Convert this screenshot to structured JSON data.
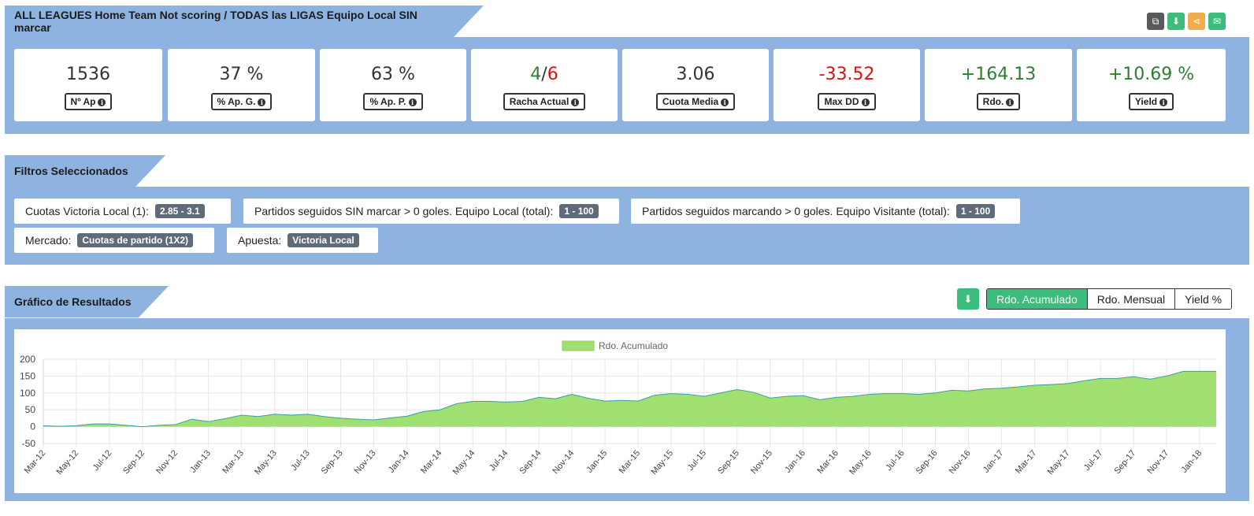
{
  "header": {
    "title": "ALL LEAGUES Home Team Not scoring / TODAS las LIGAS Equipo Local SIN marcar",
    "tools": [
      {
        "icon": "copy-icon",
        "color": "#5a5a5a"
      },
      {
        "icon": "download-icon",
        "color": "#3dbd7d"
      },
      {
        "icon": "share-icon",
        "color": "#f0ad4e"
      },
      {
        "icon": "email-icon",
        "color": "#3dbd7d"
      }
    ]
  },
  "stats": [
    {
      "value": "1536",
      "label": "Nº Ap"
    },
    {
      "value": "37 %",
      "label": "% Ap. G."
    },
    {
      "value": "63 %",
      "label": "% Ap. P."
    },
    {
      "value_win": "4",
      "value_sep": "/",
      "value_loss": "6",
      "label": "Racha Actual"
    },
    {
      "value": "3.06",
      "label": "Cuota Media"
    },
    {
      "value": "-33.52",
      "label": "Max DD"
    },
    {
      "value": "+164.13",
      "label": "Rdo."
    },
    {
      "value": "+10.69 %",
      "label": "Yield"
    }
  ],
  "filters": {
    "title": "Filtros Seleccionados",
    "items": [
      {
        "label": "Cuotas Victoria Local (1):",
        "badge": "2.85 - 3.1"
      },
      {
        "label": "Partidos seguidos SIN marcar > 0 goles. Equipo Local (total):",
        "badge": "1 - 100"
      },
      {
        "label": "Partidos seguidos marcando > 0 goles. Equipo Visitante (total):",
        "badge": "1 - 100"
      },
      {
        "label": "Mercado:",
        "badge": "Cuotas de partido (1X2)"
      },
      {
        "label": "Apuesta:",
        "badge": "Victoria Local"
      }
    ]
  },
  "results": {
    "title": "Gráfico de Resultados",
    "toggles": [
      "Rdo. Acumulado",
      "Rdo. Mensual",
      "Yield %"
    ],
    "active_toggle": "Rdo. Acumulado"
  },
  "chart_data": {
    "type": "area",
    "series": [
      {
        "name": "Rdo. Acumulado",
        "color": "#a0e070",
        "line_color": "#3aa0a0"
      }
    ],
    "x": [
      "Mar-12",
      "Apr-12",
      "May-12",
      "Jun-12",
      "Jul-12",
      "Aug-12",
      "Sep-12",
      "Oct-12",
      "Nov-12",
      "Dec-12",
      "Jan-13",
      "Feb-13",
      "Mar-13",
      "Apr-13",
      "May-13",
      "Jun-13",
      "Jul-13",
      "Aug-13",
      "Sep-13",
      "Oct-13",
      "Nov-13",
      "Dec-13",
      "Jan-14",
      "Feb-14",
      "Mar-14",
      "Apr-14",
      "May-14",
      "Jun-14",
      "Jul-14",
      "Aug-14",
      "Sep-14",
      "Oct-14",
      "Nov-14",
      "Dec-14",
      "Jan-15",
      "Feb-15",
      "Mar-15",
      "Apr-15",
      "May-15",
      "Jun-15",
      "Jul-15",
      "Aug-15",
      "Sep-15",
      "Oct-15",
      "Nov-15",
      "Dec-15",
      "Jan-16",
      "Feb-16",
      "Mar-16",
      "Apr-16",
      "May-16",
      "Jun-16",
      "Jul-16",
      "Aug-16",
      "Sep-16",
      "Oct-16",
      "Nov-16",
      "Dec-16",
      "Jan-17",
      "Feb-17",
      "Mar-17",
      "Apr-17",
      "May-17",
      "Jun-17",
      "Jul-17",
      "Aug-17",
      "Sep-17",
      "Oct-17",
      "Nov-17",
      "Dec-17",
      "Jan-18",
      "Feb-18"
    ],
    "values": [
      3,
      1,
      3,
      8,
      8,
      4,
      0,
      4,
      6,
      22,
      15,
      24,
      34,
      30,
      37,
      34,
      37,
      30,
      25,
      22,
      20,
      26,
      31,
      45,
      50,
      68,
      75,
      75,
      73,
      75,
      87,
      83,
      96,
      84,
      76,
      78,
      76,
      93,
      98,
      96,
      90,
      100,
      110,
      102,
      85,
      90,
      92,
      80,
      87,
      90,
      96,
      98,
      98,
      96,
      100,
      108,
      106,
      112,
      114,
      118,
      123,
      125,
      128,
      136,
      143,
      143,
      148,
      141,
      150,
      164,
      164,
      164
    ],
    "tick_labels": [
      "Mar-12",
      "May-12",
      "Jul-12",
      "Sep-12",
      "Nov-12",
      "Jan-13",
      "Mar-13",
      "May-13",
      "Jul-13",
      "Sep-13",
      "Nov-13",
      "Jan-14",
      "Mar-14",
      "May-14",
      "Jul-14",
      "Sep-14",
      "Nov-14",
      "Jan-15",
      "Mar-15",
      "May-15",
      "Jul-15",
      "Sep-15",
      "Nov-15",
      "Jan-16",
      "Mar-16",
      "May-16",
      "Jul-16",
      "Sep-16",
      "Nov-16",
      "Jan-17",
      "Mar-17",
      "May-17",
      "Jul-17",
      "Sep-17",
      "Nov-17",
      "Jan-18"
    ],
    "yticks": [
      -50,
      0,
      50,
      100,
      150,
      200
    ],
    "ylim": [
      -50,
      200
    ],
    "grid": true,
    "legend": "top-center"
  }
}
